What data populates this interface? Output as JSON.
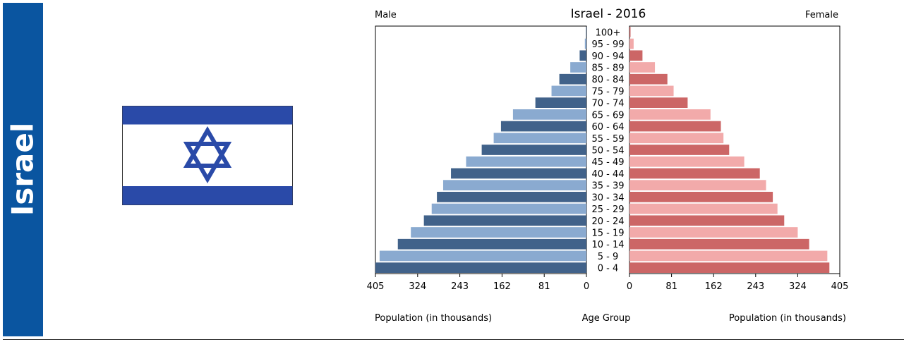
{
  "sidebar": {
    "country_label": "Israel"
  },
  "flag": {
    "icon": "star-of-david-icon",
    "blue": "#2a4aa8",
    "white": "#ffffff"
  },
  "colors": {
    "side_band": "#0a55a0",
    "male_dark": "#41628a",
    "male_light": "#8aaad0",
    "female_dark": "#cc6666",
    "female_light": "#f2aaaa"
  },
  "chart_data": {
    "type": "bar",
    "subtype": "population-pyramid",
    "title": "Israel - 2016",
    "left_header": "Male",
    "right_header": "Female",
    "xlabel_left": "Population (in thousands)",
    "xlabel_center": "Age Group",
    "xlabel_right": "Population (in thousands)",
    "xlim": [
      0,
      405
    ],
    "ticks": [
      0,
      81,
      162,
      243,
      324,
      405
    ],
    "categories": [
      "0 - 4",
      "5 - 9",
      "10 - 14",
      "15 - 19",
      "20 - 24",
      "25 - 29",
      "30 - 34",
      "35 - 39",
      "40 - 44",
      "45 - 49",
      "50 - 54",
      "55 - 59",
      "60 - 64",
      "65 - 69",
      "70 - 74",
      "75 - 79",
      "80 - 84",
      "85 - 89",
      "90 - 94",
      "95 - 99",
      "100+"
    ],
    "series": [
      {
        "name": "Male",
        "values": [
          405,
          397,
          362,
          337,
          312,
          297,
          287,
          275,
          260,
          231,
          201,
          178,
          164,
          141,
          98,
          67,
          52,
          31,
          13,
          3,
          1
        ]
      },
      {
        "name": "Female",
        "values": [
          385,
          381,
          346,
          324,
          298,
          285,
          276,
          263,
          251,
          221,
          192,
          181,
          176,
          156,
          112,
          85,
          73,
          49,
          25,
          8,
          2
        ]
      }
    ]
  }
}
